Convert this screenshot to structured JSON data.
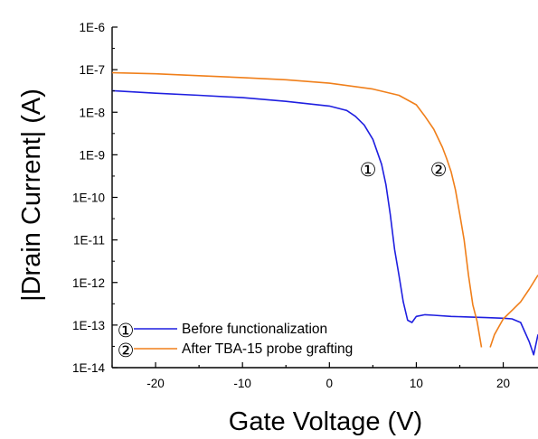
{
  "chart_data": {
    "type": "line",
    "xlabel": "Gate Voltage (V)",
    "ylabel": "|Drain Current| (A)",
    "xlim": [
      -25,
      24
    ],
    "ylim": [
      1e-14,
      1e-06
    ],
    "y_scale": "log",
    "x_ticks": [
      -20,
      -10,
      0,
      10,
      20
    ],
    "y_tick_labels": [
      "1E-14",
      "1E-13",
      "1E-12",
      "1E-11",
      "1E-10",
      "1E-9",
      "1E-8",
      "1E-7",
      "1E-6"
    ],
    "legend_position": "bottom-left",
    "series": [
      {
        "name": "Before functionalization",
        "marker": "①",
        "color": "#1f1fe0",
        "x": [
          -25,
          -20,
          -15,
          -10,
          -5,
          0,
          2,
          3,
          4,
          5,
          6,
          6.5,
          7,
          7.5,
          8,
          8.5,
          9,
          9.5,
          10,
          11,
          12,
          14,
          16,
          18,
          20,
          21,
          22,
          23,
          23.5,
          24
        ],
        "y": [
          3.2e-08,
          2.8e-08,
          2.5e-08,
          2.2e-08,
          1.8e-08,
          1.4e-08,
          1.1e-08,
          8e-09,
          5e-09,
          2.3e-09,
          6e-10,
          2e-10,
          4e-11,
          6e-12,
          1.5e-12,
          3.5e-13,
          1.3e-13,
          1.15e-13,
          1.6e-13,
          1.75e-13,
          1.7e-13,
          1.6e-13,
          1.55e-13,
          1.5e-13,
          1.45e-13,
          1.4e-13,
          1.15e-13,
          4e-14,
          2e-14,
          6e-14
        ]
      },
      {
        "name": "After TBA-15 probe grafting",
        "marker": "②",
        "color": "#f07f1a",
        "x": [
          -25,
          -20,
          -15,
          -10,
          -5,
          0,
          5,
          8,
          10,
          11,
          12,
          13,
          13.5,
          14,
          14.5,
          15,
          15.5,
          16,
          16.5,
          17,
          17.5,
          18,
          18.5,
          19,
          20,
          21,
          22,
          23,
          24
        ],
        "y": [
          8.5e-08,
          8e-08,
          7.2e-08,
          6.5e-08,
          5.8e-08,
          4.8e-08,
          3.5e-08,
          2.5e-08,
          1.5e-08,
          8e-09,
          4e-09,
          1.5e-09,
          8e-10,
          4e-10,
          1.5e-10,
          4e-11,
          1e-11,
          1.5e-12,
          3e-13,
          1.2e-13,
          3e-14,
          null,
          3e-14,
          6e-14,
          1.4e-13,
          2.2e-13,
          3.5e-13,
          7e-13,
          1.5e-12
        ]
      }
    ]
  }
}
